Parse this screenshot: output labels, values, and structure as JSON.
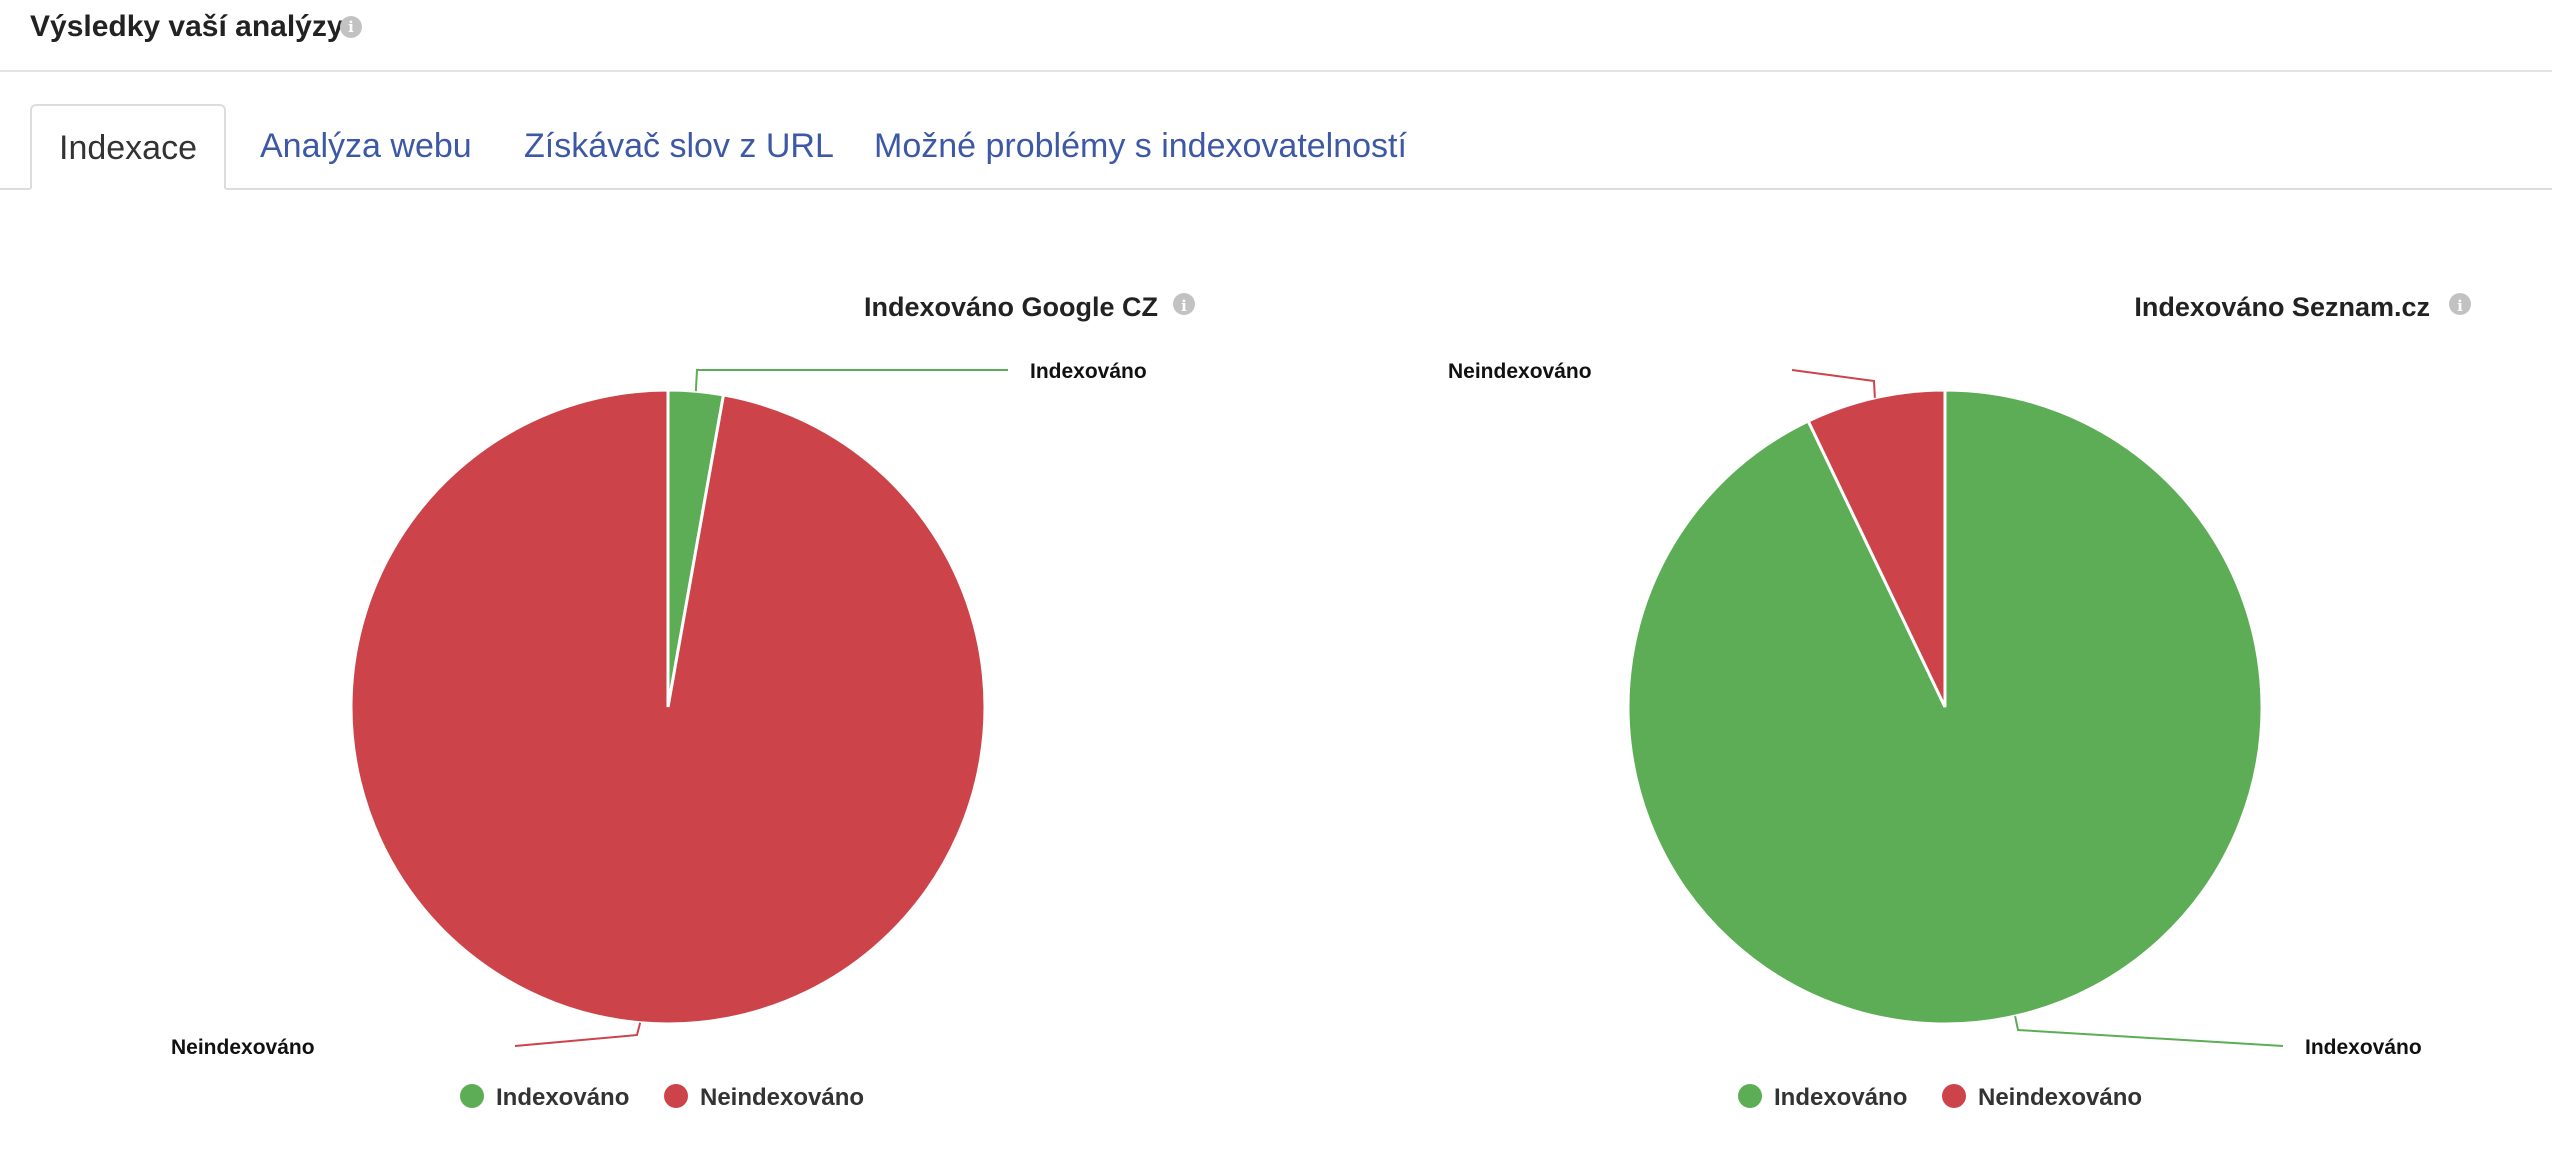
{
  "header": {
    "title": "Výsledky vaší analýzy",
    "info_icon": "info-icon"
  },
  "tabs": [
    {
      "label": "Indexace",
      "active": true
    },
    {
      "label": "Analýza webu",
      "active": false
    },
    {
      "label": "Získávač slov z URL",
      "active": false
    },
    {
      "label": "Možné problémy s indexovatelností",
      "active": false
    }
  ],
  "colors": {
    "indexed": "#5cad55",
    "not_indexed": "#cc444a",
    "tab_link": "#3d59a6"
  },
  "chart_data": [
    {
      "type": "pie",
      "title": "Indexováno Google CZ",
      "labels": [
        "Indexováno",
        "Neindexováno"
      ],
      "values": [
        2.8,
        97.2
      ],
      "legend": [
        "Indexováno",
        "Neindexováno"
      ],
      "legend_position": "bottom"
    },
    {
      "type": "pie",
      "title": "Indexováno Seznam.cz",
      "labels": [
        "Indexováno",
        "Neindexováno"
      ],
      "values": [
        92.9,
        7.1
      ],
      "legend": [
        "Indexováno",
        "Neindexováno"
      ],
      "legend_position": "bottom"
    }
  ]
}
